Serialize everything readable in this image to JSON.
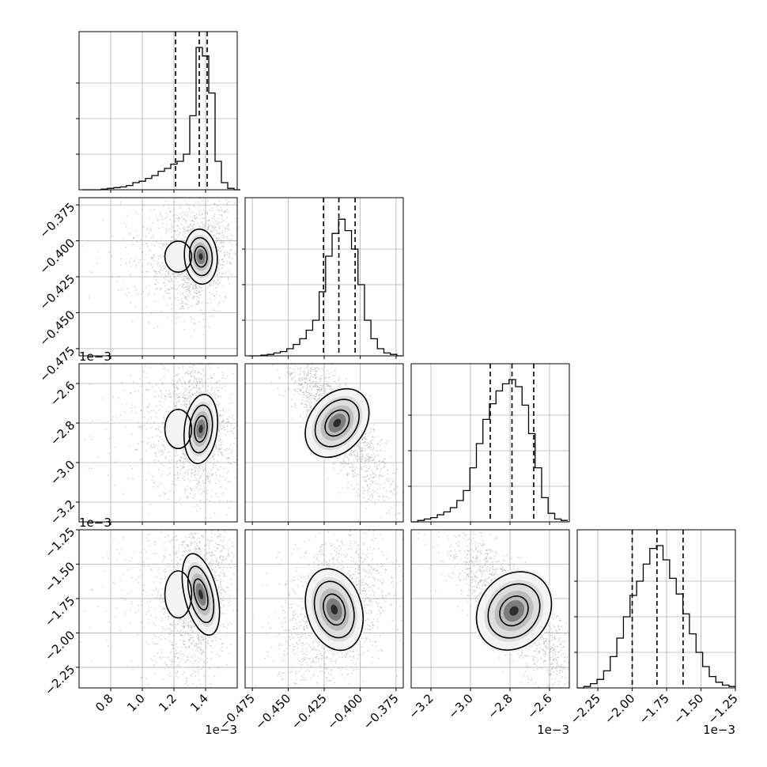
{
  "chart_data": {
    "type": "corner",
    "parameters": [
      {
        "index": 0,
        "range": [
          0.6,
          1.6
        ],
        "ticks": [
          0.8,
          1.0,
          1.2,
          1.4
        ],
        "tick_labels": [
          "0.8",
          "1.0",
          "1.2",
          "1.4"
        ],
        "offset": "1e−3",
        "quantiles": [
          1.21,
          1.36,
          1.41
        ],
        "mode": 1.37,
        "spread": 0.06,
        "hist_max": 1.0
      },
      {
        "index": 1,
        "range": [
          -0.48,
          -0.37
        ],
        "ticks": [
          -0.475,
          -0.45,
          -0.425,
          -0.4,
          -0.375
        ],
        "tick_labels": [
          "−0.475",
          "−0.450",
          "−0.425",
          "−0.400",
          "−0.375"
        ],
        "offset": "",
        "quantiles": [
          -0.4255,
          -0.4148,
          -0.4035
        ],
        "mode": -0.415,
        "spread": 0.011,
        "hist_max": 1.0
      },
      {
        "index": 2,
        "range": [
          -3.3,
          -2.5
        ],
        "ticks": [
          -3.2,
          -3.0,
          -2.8,
          -2.6
        ],
        "tick_labels": [
          "−3.2",
          "−3.0",
          "−2.8",
          "−2.6"
        ],
        "offset": "1e−3",
        "quantiles": [
          -2.9,
          -2.79,
          -2.68
        ],
        "mode": -2.79,
        "spread": 0.11,
        "hist_max": 1.0
      },
      {
        "index": 3,
        "range": [
          -2.4,
          -1.25
        ],
        "ticks": [
          -2.25,
          -2.0,
          -1.75,
          -1.5,
          -1.25
        ],
        "tick_labels": [
          "−2.25",
          "−2.00",
          "−1.75",
          "−1.50",
          "−1.25"
        ],
        "offset": "1e−3",
        "quantiles": [
          -2.0,
          -1.82,
          -1.63
        ],
        "mode": -1.83,
        "spread": 0.19,
        "hist_max": 1.0
      }
    ],
    "histograms": [
      {
        "param": 0,
        "bins": [
          0.62,
          0.66,
          0.7,
          0.74,
          0.78,
          0.82,
          0.86,
          0.9,
          0.94,
          0.98,
          1.02,
          1.06,
          1.1,
          1.14,
          1.18,
          1.22,
          1.26,
          1.3,
          1.34,
          1.38,
          1.42,
          1.46,
          1.5,
          1.54,
          1.58
        ],
        "values": [
          0.0,
          0.0,
          0.0,
          0.005,
          0.01,
          0.015,
          0.02,
          0.03,
          0.05,
          0.06,
          0.08,
          0.1,
          0.13,
          0.15,
          0.18,
          0.2,
          0.25,
          0.52,
          1.0,
          0.94,
          0.68,
          0.2,
          0.05,
          0.01,
          0.0
        ]
      },
      {
        "param": 1,
        "bins": [
          -0.478,
          -0.4735,
          -0.469,
          -0.4645,
          -0.46,
          -0.4555,
          -0.451,
          -0.4465,
          -0.442,
          -0.4375,
          -0.433,
          -0.4285,
          -0.424,
          -0.4195,
          -0.415,
          -0.4105,
          -0.406,
          -0.4015,
          -0.397,
          -0.3925,
          -0.388,
          -0.3835,
          -0.379,
          -0.3745
        ],
        "values": [
          0.0,
          0.0,
          0.005,
          0.01,
          0.02,
          0.03,
          0.05,
          0.08,
          0.12,
          0.18,
          0.25,
          0.45,
          0.7,
          0.86,
          0.96,
          0.88,
          0.75,
          0.5,
          0.25,
          0.12,
          0.05,
          0.02,
          0.01,
          0.0
        ]
      },
      {
        "param": 2,
        "bins": [
          -3.3,
          -3.267,
          -3.234,
          -3.201,
          -3.168,
          -3.135,
          -3.102,
          -3.069,
          -3.036,
          -3.003,
          -2.97,
          -2.937,
          -2.904,
          -2.871,
          -2.838,
          -2.805,
          -2.772,
          -2.739,
          -2.706,
          -2.673,
          -2.64,
          -2.607,
          -2.574,
          -2.541
        ],
        "values": [
          0.0,
          0.01,
          0.02,
          0.03,
          0.05,
          0.07,
          0.1,
          0.15,
          0.22,
          0.38,
          0.55,
          0.72,
          0.83,
          0.92,
          0.97,
          1.0,
          0.95,
          0.82,
          0.62,
          0.38,
          0.17,
          0.06,
          0.02,
          0.01
        ]
      },
      {
        "param": 3,
        "bins": [
          -2.4,
          -2.352,
          -2.304,
          -2.256,
          -2.208,
          -2.16,
          -2.112,
          -2.064,
          -2.016,
          -1.968,
          -1.92,
          -1.872,
          -1.824,
          -1.776,
          -1.728,
          -1.68,
          -1.632,
          -1.584,
          -1.536,
          -1.488,
          -1.44,
          -1.392,
          -1.344,
          -1.296
        ],
        "values": [
          0.0,
          0.01,
          0.03,
          0.06,
          0.12,
          0.22,
          0.35,
          0.5,
          0.65,
          0.75,
          0.87,
          0.98,
          1.0,
          0.9,
          0.77,
          0.66,
          0.52,
          0.38,
          0.25,
          0.15,
          0.08,
          0.04,
          0.02,
          0.01
        ]
      }
    ],
    "pairs": [
      {
        "row": 1,
        "col": 0,
        "peak": [
          1.37,
          -0.411
        ],
        "sx": 0.065,
        "sy": 0.012,
        "rho": 0.1,
        "tail": true
      },
      {
        "row": 2,
        "col": 0,
        "peak": [
          1.37,
          -2.83
        ],
        "sx": 0.065,
        "sy": 0.11,
        "rho": -0.15,
        "tail": true
      },
      {
        "row": 2,
        "col": 1,
        "peak": [
          -0.416,
          -2.8
        ],
        "sx": 0.012,
        "sy": 0.12,
        "rho": -0.85,
        "tail": false
      },
      {
        "row": 3,
        "col": 0,
        "peak": [
          1.37,
          -1.72
        ],
        "sx": 0.065,
        "sy": 0.19,
        "rho": 0.3,
        "tail": true
      },
      {
        "row": 3,
        "col": 1,
        "peak": [
          -0.418,
          -1.83
        ],
        "sx": 0.012,
        "sy": 0.19,
        "rho": 0.35,
        "tail": false
      },
      {
        "row": 3,
        "col": 2,
        "peak": [
          -2.78,
          -1.84
        ],
        "sx": 0.11,
        "sy": 0.19,
        "rho": -0.85,
        "tail": false
      }
    ],
    "grid": true,
    "legend": "none"
  }
}
